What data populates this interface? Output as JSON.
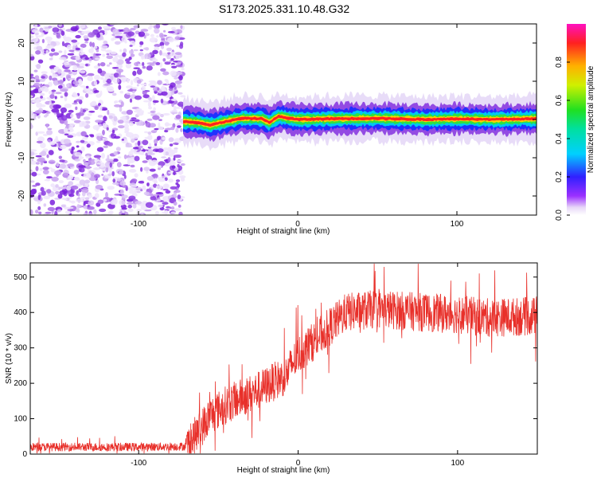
{
  "title": "S173.2025.331.10.48.G32",
  "chart_data": [
    {
      "type": "heatmap",
      "xlabel": "Height of straight line (km)",
      "ylabel": "Frequency (Hz)",
      "xlim": [
        -168,
        150
      ],
      "ylim": [
        -25,
        25
      ],
      "x_ticks": [
        -100,
        0,
        100
      ],
      "y_ticks": [
        -20,
        -10,
        0,
        10,
        20
      ],
      "noise_region_x": [
        -168,
        -72
      ],
      "signal_band": {
        "x_start": -72,
        "x_end": 150,
        "freq_center": [
          [
            -72,
            -0.5
          ],
          [
            -62,
            -0.8
          ],
          [
            -55,
            -1.5
          ],
          [
            -45,
            -0.5
          ],
          [
            -35,
            0.3
          ],
          [
            -22,
            0.2
          ],
          [
            -18,
            -0.8
          ],
          [
            -12,
            0.8
          ],
          [
            -5,
            0.3
          ],
          [
            0,
            0.0
          ],
          [
            20,
            0.2
          ],
          [
            50,
            0.3
          ],
          [
            80,
            0.0
          ],
          [
            100,
            0.2
          ],
          [
            120,
            0.0
          ],
          [
            150,
            0.2
          ]
        ],
        "freq_halfwidth_hz": 1.2
      },
      "colorbar": {
        "label": "Normalized spectral amplitude",
        "range": [
          0,
          1
        ],
        "ticks": [
          0.0,
          0.2,
          0.4,
          0.6,
          0.8
        ]
      }
    },
    {
      "type": "line",
      "color": "#e8302a",
      "xlabel": "Height of straight line (km)",
      "ylabel": "SNR (10 * v/v)",
      "xlim": [
        -168,
        150
      ],
      "ylim": [
        0,
        540
      ],
      "x_ticks": [
        -100,
        0,
        100
      ],
      "y_ticks": [
        0,
        100,
        200,
        300,
        400,
        500
      ],
      "trend": {
        "x": [
          -168,
          -100,
          -70,
          -63,
          -55,
          -45,
          -35,
          -25,
          -15,
          -8,
          -3,
          0,
          10,
          20,
          30,
          50,
          80,
          100,
          120,
          150
        ],
        "y": [
          20,
          20,
          22,
          60,
          110,
          140,
          160,
          180,
          205,
          220,
          260,
          280,
          320,
          360,
          400,
          410,
          400,
          395,
          385,
          390
        ]
      },
      "noise_amplitude": [
        {
          "x": [
            -168,
            -70
          ],
          "amp": 12
        },
        {
          "x": [
            -70,
            25
          ],
          "amp": 55
        },
        {
          "x": [
            25,
            150
          ],
          "amp": 55
        }
      ]
    }
  ]
}
